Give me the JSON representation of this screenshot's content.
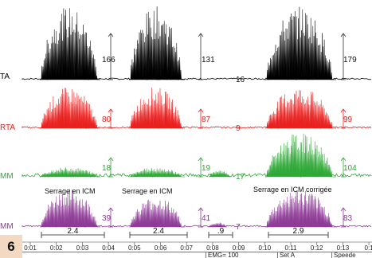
{
  "figure_number": "6",
  "time_axis": {
    "ticks": [
      "0:01",
      "0:02",
      "0:03",
      "0:04",
      "0:05",
      "0:06",
      "0:07",
      "0:08",
      "0:09",
      "0:10",
      "0:11",
      "0:12",
      "0:13",
      "0:1"
    ]
  },
  "footer": {
    "emg": "EMG= 100",
    "set": "Set A",
    "speed": "Speede"
  },
  "channels": [
    {
      "label": "TA",
      "color": "#000000",
      "values": [
        {
          "text": "166"
        },
        {
          "text": "131"
        },
        {
          "text": "16"
        },
        {
          "text": "179"
        }
      ]
    },
    {
      "label": "RTA",
      "color": "#e8201e",
      "values": [
        {
          "text": "80"
        },
        {
          "text": "87"
        },
        {
          "text": "9"
        },
        {
          "text": "99"
        }
      ]
    },
    {
      "label": "MM",
      "color": "#2ea836",
      "values": [
        {
          "text": "18"
        },
        {
          "text": "19"
        },
        {
          "text": "17"
        },
        {
          "text": "104"
        }
      ]
    },
    {
      "label": "MM",
      "color": "#8e3a97",
      "values": [
        {
          "text": "39"
        },
        {
          "text": "41"
        },
        {
          "text": "7"
        },
        {
          "text": "83"
        }
      ],
      "annotations": [
        "Serrage en ICM",
        "Serrage en ICM",
        "Serrage en ICM corrigée"
      ]
    }
  ],
  "durations": [
    "2.4",
    "2.4",
    ".9",
    "2.9"
  ],
  "colors": {
    "background": "#ffffff",
    "badge": "#f3d9c2",
    "arrow": "#555555",
    "baseline": "#9a9a9a"
  }
}
